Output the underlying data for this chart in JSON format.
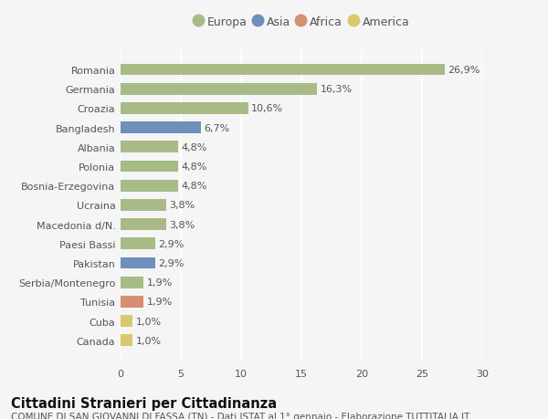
{
  "categories": [
    "Canada",
    "Cuba",
    "Tunisia",
    "Serbia/Montenegro",
    "Pakistan",
    "Paesi Bassi",
    "Macedonia d/N.",
    "Ucraina",
    "Bosnia-Erzegovina",
    "Polonia",
    "Albania",
    "Bangladesh",
    "Croazia",
    "Germania",
    "Romania"
  ],
  "values": [
    1.0,
    1.0,
    1.9,
    1.9,
    2.9,
    2.9,
    3.8,
    3.8,
    4.8,
    4.8,
    4.8,
    6.7,
    10.6,
    16.3,
    26.9
  ],
  "colors": [
    "#d9c96e",
    "#d9c96e",
    "#d49070",
    "#a8bb87",
    "#6e90bb",
    "#a8bb87",
    "#a8bb87",
    "#a8bb87",
    "#a8bb87",
    "#a8bb87",
    "#a8bb87",
    "#6e90bb",
    "#a8bb87",
    "#a8bb87",
    "#a8bb87"
  ],
  "labels": [
    "1,0%",
    "1,0%",
    "1,9%",
    "1,9%",
    "2,9%",
    "2,9%",
    "3,8%",
    "3,8%",
    "4,8%",
    "4,8%",
    "4,8%",
    "6,7%",
    "10,6%",
    "16,3%",
    "26,9%"
  ],
  "legend": {
    "Europa": "#a8bb87",
    "Asia": "#6e90bb",
    "Africa": "#d49070",
    "America": "#d9c96e"
  },
  "title": "Cittadini Stranieri per Cittadinanza",
  "subtitle": "COMUNE DI SAN GIOVANNI DI FASSA (TN) - Dati ISTAT al 1° gennaio - Elaborazione TUTTITALIA.IT",
  "xlim": [
    0,
    30
  ],
  "xticks": [
    0,
    5,
    10,
    15,
    20,
    25,
    30
  ],
  "background_color": "#f5f5f5",
  "plot_bg_color": "#f5f5f5",
  "grid_color": "#ffffff",
  "bar_height": 0.6,
  "label_fontsize": 8,
  "tick_fontsize": 8,
  "title_fontsize": 10.5,
  "subtitle_fontsize": 7.5
}
